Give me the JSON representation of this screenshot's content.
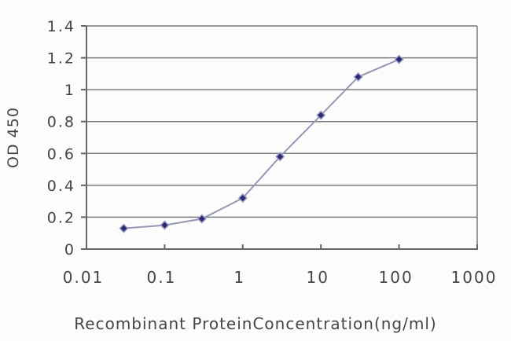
{
  "chart_data": {
    "type": "line",
    "title": "",
    "xlabel": "Recombinant ProteinConcentration(ng/ml)",
    "ylabel": "OD 450",
    "x_scale": "log",
    "xlim": [
      0.01,
      1000
    ],
    "ylim": [
      0,
      1.4
    ],
    "x_ticks": [
      0.01,
      0.1,
      1,
      10,
      100,
      1000
    ],
    "x_tick_labels": [
      "0.01",
      "0.1",
      "1",
      "10",
      "100",
      "1000"
    ],
    "y_ticks": [
      0,
      0.2,
      0.4,
      0.6,
      0.8,
      1,
      1.2,
      1.4
    ],
    "y_tick_labels": [
      "0",
      "0.2",
      "0.4",
      "0.6",
      "0.8",
      "1",
      "1.2",
      "1.4"
    ],
    "grid": "horizontal",
    "legend": false,
    "series": [
      {
        "marker": "diamond",
        "x": [
          0.03,
          0.1,
          0.3,
          1,
          3,
          10,
          30,
          100
        ],
        "y": [
          0.13,
          0.15,
          0.19,
          0.32,
          0.58,
          0.84,
          1.08,
          1.19
        ]
      }
    ],
    "colors": {
      "line": "#9697bb",
      "marker": "#2a2a7d",
      "marker_halo": "#9a9bc0",
      "grid": "#7b7b7b",
      "axis": "#666666",
      "text": "#454545",
      "background": "#fcfcfb"
    }
  }
}
